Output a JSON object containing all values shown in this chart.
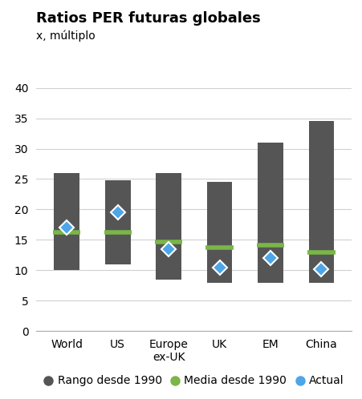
{
  "title": "Ratios PER futuras globales",
  "ylabel": "x, múltiplo",
  "categories": [
    "World",
    "US",
    "Europe\nex-UK",
    "UK",
    "EM",
    "China"
  ],
  "bar_low": [
    10.0,
    11.0,
    8.5,
    8.0,
    8.0,
    8.0
  ],
  "bar_high": [
    26.0,
    24.8,
    26.0,
    24.5,
    31.0,
    34.5
  ],
  "media": [
    16.3,
    16.3,
    14.7,
    13.8,
    14.1,
    13.0
  ],
  "actual": [
    17.0,
    19.5,
    13.5,
    10.4,
    12.0,
    10.2
  ],
  "ylim": [
    0,
    40
  ],
  "yticks": [
    0,
    5,
    10,
    15,
    20,
    25,
    30,
    35,
    40
  ],
  "bar_color": "#555555",
  "media_color": "#7ab648",
  "actual_color": "#4da6e8",
  "actual_edge_color": "#ffffff",
  "background_color": "#ffffff",
  "bar_width": 0.5,
  "title_fontsize": 13,
  "ylabel_fontsize": 10,
  "tick_fontsize": 10,
  "legend_labels": [
    "Rango desde 1990",
    "Media desde 1990",
    "Actual"
  ],
  "grid_color": "#d0d0d0"
}
